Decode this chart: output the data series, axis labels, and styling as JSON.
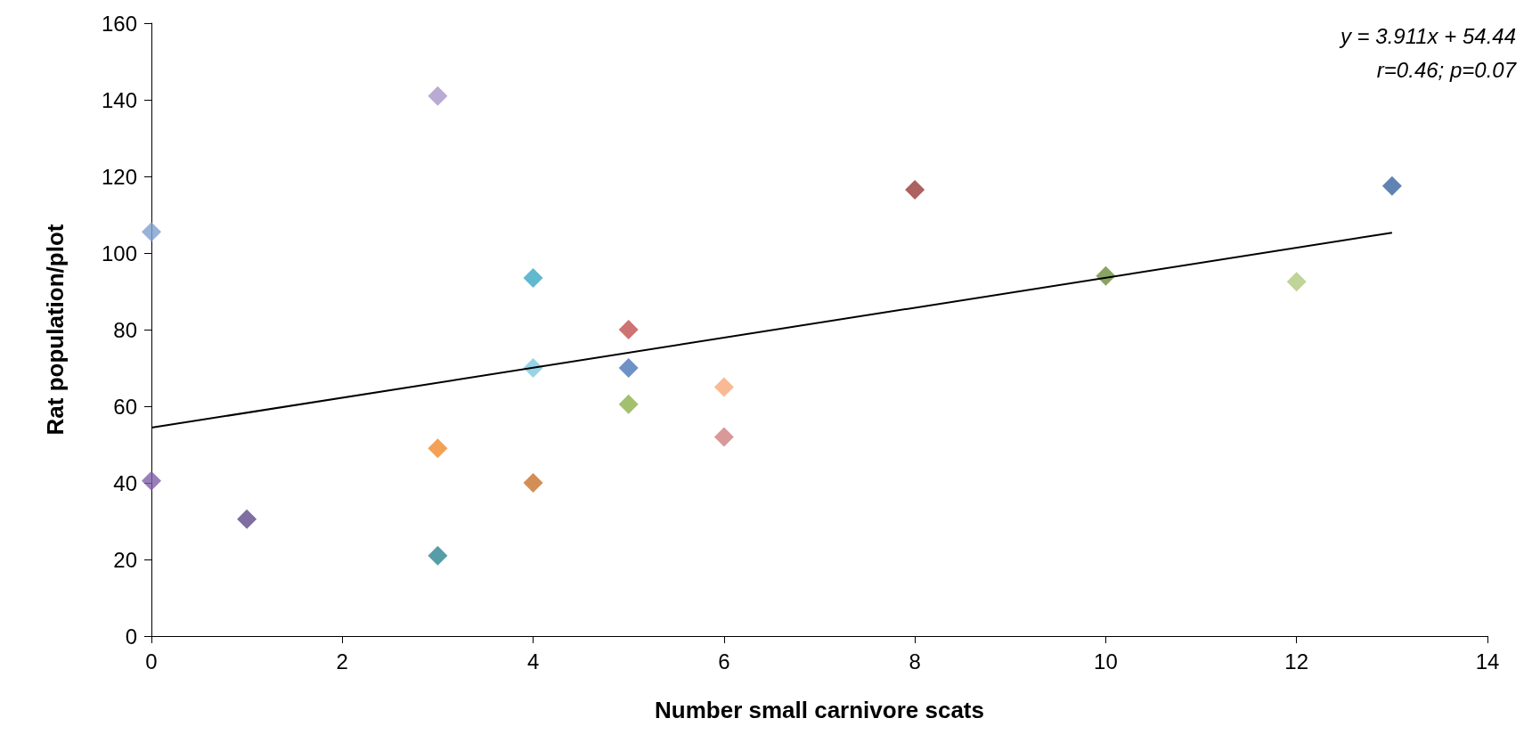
{
  "chart_data": {
    "type": "scatter",
    "xlabel": "Number small carnivore scats",
    "ylabel": "Rat population/plot",
    "annotations": [
      "y = 3.911x + 54.44",
      "r=0.46; p=0.07"
    ],
    "xlim": [
      0,
      14
    ],
    "xticks": [
      0,
      2,
      4,
      6,
      8,
      10,
      12,
      14
    ],
    "ylim": [
      0,
      160
    ],
    "yticks": [
      0,
      20,
      40,
      60,
      80,
      100,
      120,
      140,
      160
    ],
    "grid": false,
    "marker": "diamond",
    "series": [
      {
        "x": [
          0,
          0,
          1,
          3,
          3,
          3,
          4,
          4,
          4,
          5,
          5,
          5,
          6,
          6,
          8,
          10,
          12,
          13
        ],
        "values": [
          105.5,
          40.5,
          30.5,
          141,
          49,
          21,
          93.5,
          70,
          40,
          80,
          70,
          60.5,
          65,
          52,
          116.5,
          94,
          92.5,
          117.5
        ],
        "colors": [
          "#7f9fd0",
          "#7f5fa8",
          "#5f4a8b",
          "#a896c8",
          "#f08a2c",
          "#2c8494",
          "#3aa8c0",
          "#7cc8e0",
          "#c8722a",
          "#c0504d",
          "#4a76b8",
          "#8cb04a",
          "#f8a878",
          "#d08080",
          "#983a38",
          "#6b8c3a",
          "#b0c880",
          "#3a64a0"
        ]
      },
      {
        "type": "line",
        "x": [
          0,
          13
        ],
        "values": [
          54.4,
          105.3
        ],
        "color": "#000000",
        "marker": "none",
        "line_style": "solid"
      }
    ]
  }
}
